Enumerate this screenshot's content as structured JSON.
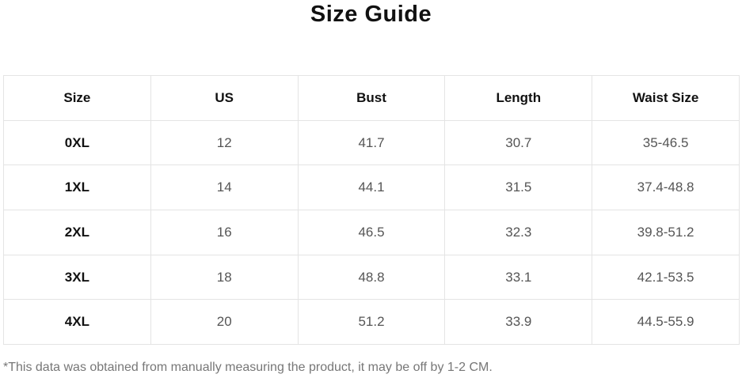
{
  "title": "Size Guide",
  "table": {
    "headers": [
      "Size",
      "US",
      "Bust",
      "Length",
      "Waist Size"
    ],
    "rows": [
      [
        "0XL",
        "12",
        "41.7",
        "30.7",
        "35-46.5"
      ],
      [
        "1XL",
        "14",
        "44.1",
        "31.5",
        "37.4-48.8"
      ],
      [
        "2XL",
        "16",
        "46.5",
        "32.3",
        "39.8-51.2"
      ],
      [
        "3XL",
        "18",
        "48.8",
        "33.1",
        "42.1-53.5"
      ],
      [
        "4XL",
        "20",
        "51.2",
        "33.9",
        "44.5-55.9"
      ]
    ]
  },
  "note": "*This data was obtained from manually measuring the product, it may be off by 1-2 CM."
}
